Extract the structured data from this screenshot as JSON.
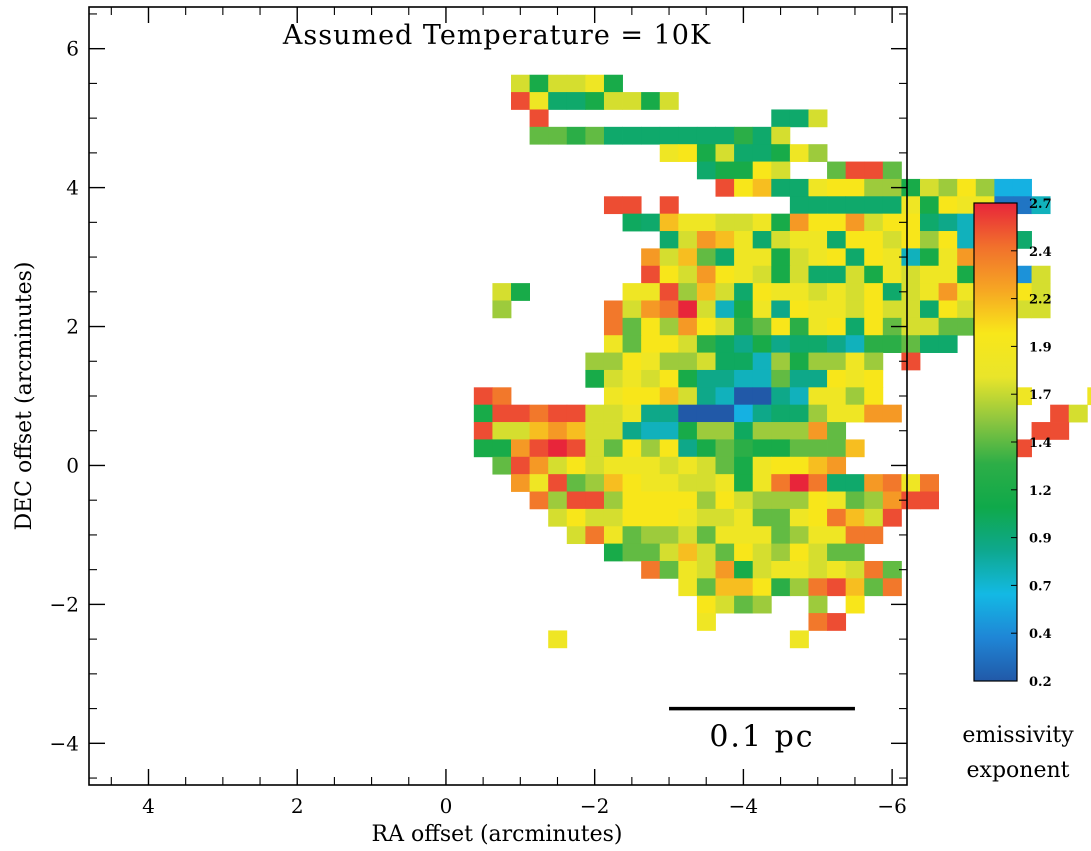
{
  "chart_data": {
    "type": "heatmap",
    "title": "Assumed Temperature = 10K",
    "xlabel": "RA offset (arcminutes)",
    "ylabel": "DEC offset (arcminutes)",
    "xlim": [
      4.8,
      -6.2
    ],
    "ylim": [
      -4.6,
      6.6
    ],
    "x_ticks": [
      4,
      2,
      0,
      -2,
      -4,
      -6
    ],
    "x_tick_labels": [
      "4",
      "2",
      "0",
      "−2",
      "−4",
      "−6"
    ],
    "y_ticks": [
      6,
      4,
      2,
      0,
      -2,
      -4
    ],
    "y_tick_labels": [
      "6",
      "4",
      "2",
      "0",
      "−2",
      "−4"
    ],
    "grid": false,
    "pixel_size_arcmin": 0.25,
    "colorbar": {
      "min": 0.2,
      "max": 2.7,
      "ticks": [
        0.2,
        0.4,
        0.7,
        0.9,
        1.2,
        1.4,
        1.7,
        1.9,
        2.2,
        2.4,
        2.7
      ],
      "tick_labels": [
        "0.2",
        "0.4",
        "0.7",
        "0.9",
        "1.2",
        "1.4",
        "1.7",
        "1.9",
        "2.2",
        "2.4",
        "2.7"
      ],
      "label_line1": "emissivity",
      "label_line2": "exponent",
      "colors": [
        "#2159a8",
        "#1f86d6",
        "#13b9e4",
        "#0ea88e",
        "#0fa94a",
        "#2dae47",
        "#8ec63f",
        "#e9e52a",
        "#f8e71a",
        "#f6a623",
        "#f1702c",
        "#e8253a"
      ]
    },
    "scale_bar": {
      "label": "0.1 pc",
      "from_ra": -3.0,
      "to_ra": -5.5,
      "dec": -3.5
    },
    "grid_origin": {
      "ra0": 4.0,
      "dec0": 5.5
    },
    "rows": [
      "                    LHLLMH          ",
      "                    RM..HLLHL          ",
      "                     R            ..L   ",
      "                     JJIJ.......I.L   ",
      "                            MNHL..HMK   ",
      "                              .HHNL  JRRJ",
      "                               RNO..MNNKKHLKNKDD",
      "                         RR R      ......MHNMMBBE",
      "                          G.OMMLLMHPNNPLNN.FEEA",
      "                            .LPOM.LMM.NNLNKNELL.",
      "                           PLOJ.MMHLMN.NMEHMPDC",
      "                           RNLPNMLHL..LHMLMMHNLCL",
      "                   LH     MMRKOL.NMMLMLN.LMPM.MNL",
      "                   K     QLPQSLEHMFNMMLNLL.NLMJLL",
      "                         QJNKPNLIJNIMN.NJLLJJ..",
      "                         MJNNLIGFHF..FEIIJ..",
      "                        KKNMKKLGGEKHKKMK R",
      "                        HLMLNHFFEEJFFNMN      L",
      "                  RQ     MNNOLFEAAFEMMKN     OPM   M L   Q",
      "                  HRRQRRLLMFFAAADF..KMMPP        RL   ",
      "                  RLLOPOLLFEEHKKGKKKPJ          RR",
      "                  HHPRSRLJNKNFHJIHHJJJO        R",
      "                   JRPLNLMMMLMLJHMNNOP         ",
      "                    PMRJKONMMLLMHMQSQ..PQMQ",
      "                     QKRRKNNNNKNLKKKNMJKPRR",
      "                      LNLLNNNMLLMJJMNQOLR",
      "                       LQMJKKLJMMMJKMMQQ",
      "                         HJJLOLJNLKNLJJ",
      "                           QJMLPHLMMLMLQJ",
      "                             MJOONIKQROJQ   ",
      "                              NLJK  K N",
      "                              M     QR",
      "                      M            M"
    ]
  }
}
